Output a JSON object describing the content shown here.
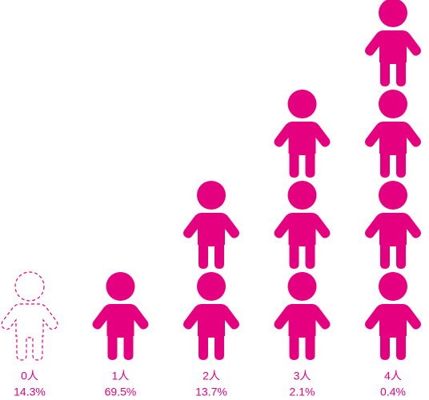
{
  "chart_data": {
    "type": "pictograph",
    "categories": [
      "0人",
      "1人",
      "2人",
      "3人",
      "4人"
    ],
    "values": [
      14.3,
      69.5,
      13.7,
      2.1,
      0.4
    ],
    "value_labels": [
      "14.3%",
      "69.5%",
      "13.7%",
      "2.1%",
      "0.4%"
    ],
    "color": "#e4007f"
  }
}
